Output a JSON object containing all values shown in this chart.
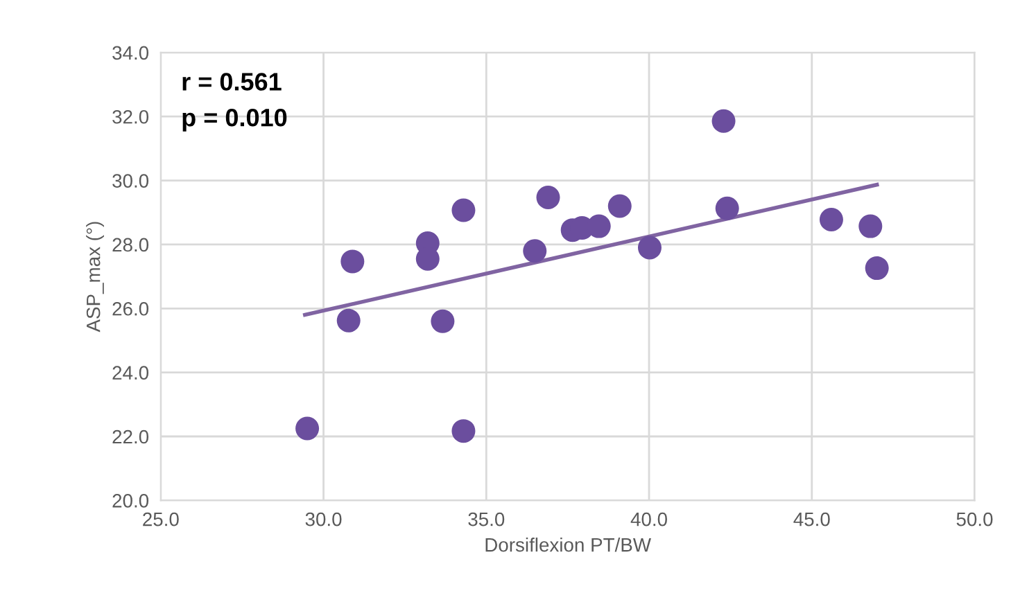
{
  "chart_data": {
    "type": "scatter",
    "xlabel": "Dorsiflexion PT/BW",
    "ylabel": "ASP_max (°)",
    "annotations": [
      "r = 0.561",
      "p = 0.010"
    ],
    "series": [
      {
        "color": "#6b4e9e",
        "marker": "circle",
        "x": [
          29.5,
          30.77,
          30.89,
          33.2,
          33.2,
          33.66,
          34.3,
          34.3,
          36.49,
          36.9,
          37.65,
          37.94,
          38.46,
          39.1,
          40.02,
          42.29,
          42.4,
          45.6,
          46.8,
          47.0
        ],
        "values": [
          22.25,
          25.62,
          27.47,
          28.04,
          27.55,
          25.6,
          29.07,
          22.17,
          27.8,
          29.47,
          28.45,
          28.52,
          28.57,
          29.2,
          27.9,
          31.86,
          29.13,
          28.78,
          28.57,
          27.26
        ]
      },
      {
        "type": "line",
        "color": "#8064a2",
        "marker": "none",
        "x": [
          29.43,
          47.0
        ],
        "values": [
          25.8,
          29.87
        ]
      }
    ],
    "xlim": [
      25,
      50
    ],
    "ylim": [
      20,
      34
    ],
    "xticks": [
      {
        "value": 25,
        "label": "25.0"
      },
      {
        "value": 30,
        "label": "30.0"
      },
      {
        "value": 35,
        "label": "35.0"
      },
      {
        "value": 40,
        "label": "40.0"
      },
      {
        "value": 45,
        "label": "45.0"
      },
      {
        "value": 50,
        "label": "50.0"
      }
    ],
    "yticks": [
      {
        "value": 20,
        "label": "20.0"
      },
      {
        "value": 22,
        "label": "22.0"
      },
      {
        "value": 24,
        "label": "24.0"
      },
      {
        "value": 26,
        "label": "26.0"
      },
      {
        "value": 28,
        "label": "28.0"
      },
      {
        "value": 30,
        "label": "30.0"
      },
      {
        "value": 32,
        "label": "32.0"
      },
      {
        "value": 34,
        "label": "34.0"
      }
    ],
    "grid": true
  }
}
